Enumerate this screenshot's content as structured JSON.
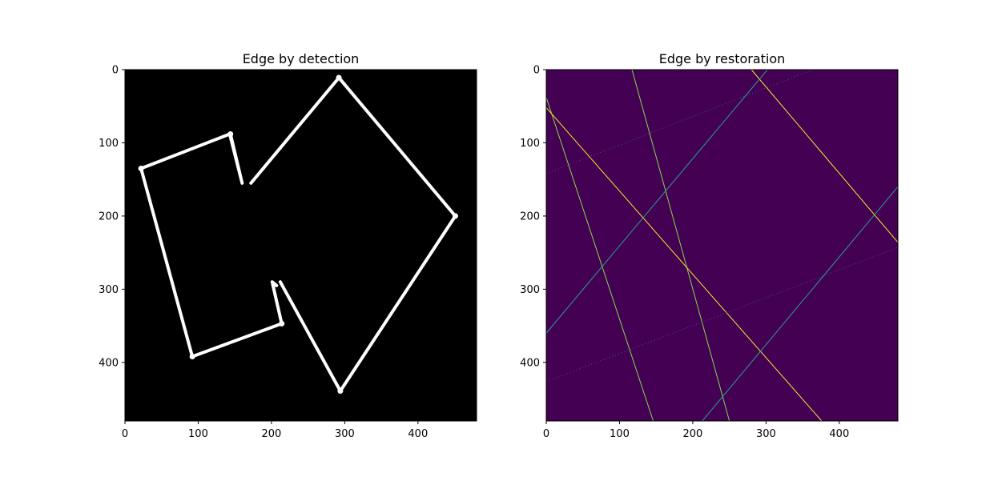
{
  "chart_data": [
    {
      "type": "image",
      "title": "Edge by detection",
      "xlim": [
        0,
        480
      ],
      "ylim": [
        480,
        0
      ],
      "x_ticks": [
        0,
        100,
        200,
        300,
        400
      ],
      "y_ticks": [
        0,
        100,
        200,
        300,
        400
      ],
      "colormap": "gray",
      "background": "#000000",
      "polylines": [
        {
          "name": "left-shape-outline",
          "color": "#ffffff",
          "points": [
            [
              144,
              88
            ],
            [
              160,
              155
            ],
            [
              143,
              88
            ],
            [
              22,
              135
            ],
            [
              92,
              392
            ],
            [
              214,
              347
            ],
            [
              201,
              290
            ],
            [
              207,
              295
            ]
          ]
        },
        {
          "name": "right-shape-outline",
          "color": "#ffffff",
          "points": [
            [
              172,
              155
            ],
            [
              292,
              11
            ],
            [
              451,
              200
            ],
            [
              294,
              439
            ],
            [
              212,
              290
            ]
          ]
        }
      ],
      "corner_dots": [
        [
          292,
          11
        ],
        [
          451,
          200
        ],
        [
          294,
          439
        ],
        [
          22,
          135
        ],
        [
          92,
          392
        ],
        [
          144,
          88
        ],
        [
          214,
          347
        ]
      ]
    },
    {
      "type": "image",
      "title": "Edge by restoration",
      "xlim": [
        0,
        480
      ],
      "ylim": [
        480,
        0
      ],
      "x_ticks": [
        0,
        100,
        200,
        300,
        400
      ],
      "y_ticks": [
        0,
        100,
        200,
        300,
        400
      ],
      "colormap": "viridis",
      "background": "#440154",
      "lines": [
        {
          "name": "steep-line-left",
          "color": "#86d549",
          "from": [
            0,
            38
          ],
          "to": [
            146,
            480
          ]
        },
        {
          "name": "steep-line-right",
          "color": "#86d549",
          "from": [
            117,
            0
          ],
          "to": [
            250,
            480
          ]
        },
        {
          "name": "diagonal-down-left",
          "color": "#fde725",
          "from": [
            0,
            52
          ],
          "to": [
            376,
            480
          ]
        },
        {
          "name": "diagonal-down-right",
          "color": "#fde725",
          "from": [
            280,
            0
          ],
          "to": [
            480,
            236
          ]
        },
        {
          "name": "rising-line-left",
          "color": "#2a9d8f",
          "from": [
            0,
            360
          ],
          "to": [
            302,
            0
          ]
        },
        {
          "name": "rising-line-right",
          "color": "#2a9d8f",
          "from": [
            213,
            480
          ],
          "to": [
            480,
            160
          ]
        },
        {
          "name": "dotted-line-upper",
          "color": "#3b528b",
          "from": [
            0,
            142
          ],
          "to": [
            364,
            0
          ]
        },
        {
          "name": "dotted-line-lower",
          "color": "#3b528b",
          "from": [
            0,
            426
          ],
          "to": [
            480,
            243
          ]
        }
      ]
    }
  ]
}
